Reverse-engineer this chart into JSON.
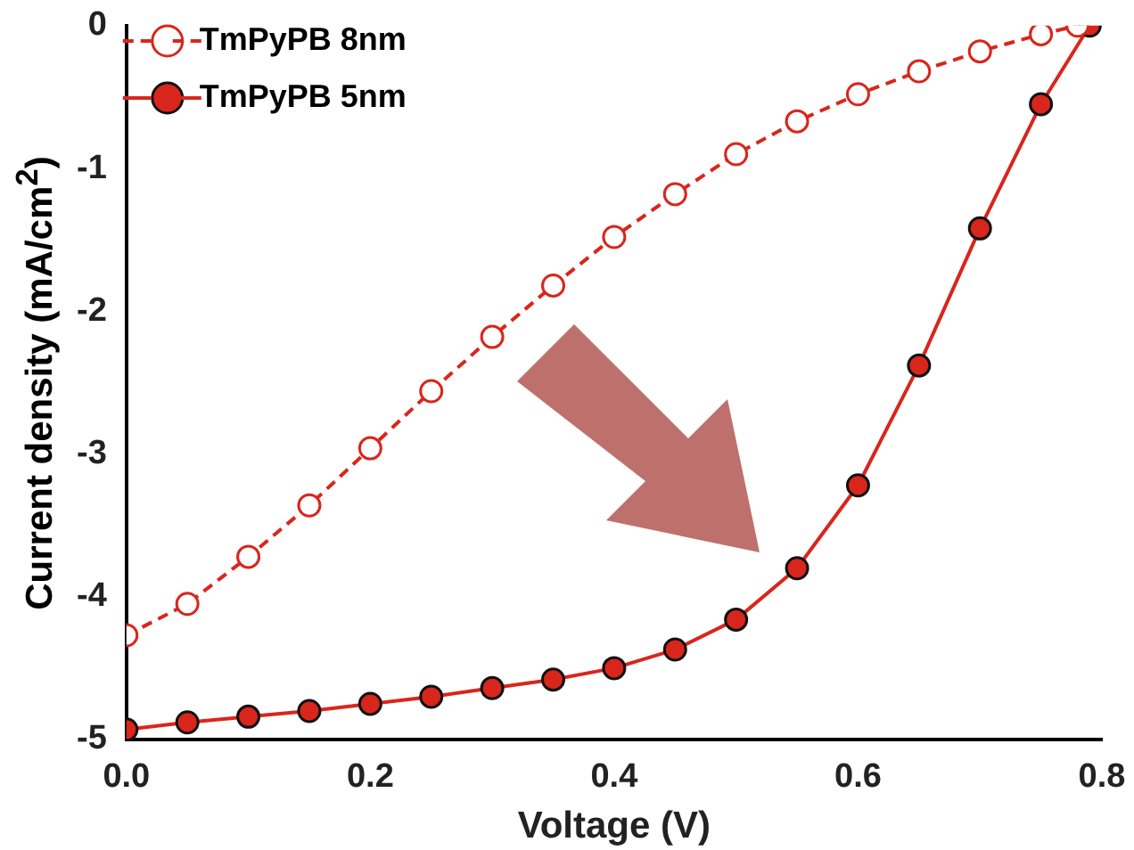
{
  "chart_data": {
    "type": "line",
    "xlabel": "Voltage (V)",
    "ylabel": "Current density (mA/cm$^{2}$)",
    "xlim": [
      0,
      0.8
    ],
    "xticks": [
      {
        "value": 0,
        "label": "0.0"
      },
      {
        "value": 0.2,
        "label": "0.2"
      },
      {
        "value": 0.4,
        "label": "0.4"
      },
      {
        "value": 0.6,
        "label": "0.6"
      },
      {
        "value": 0.8,
        "label": "0.8"
      }
    ],
    "ylim": [
      -5,
      0
    ],
    "yticks": [
      -5,
      -4,
      -3,
      -2,
      -1,
      0
    ],
    "grid": false,
    "legend": "top left",
    "series": [
      {
        "name": "TmPyPB 8nm",
        "color": "#d9261c",
        "line_style": "dashed",
        "marker": "circle",
        "x": [
          0,
          0.05,
          0.1,
          0.15,
          0.2,
          0.25,
          0.3,
          0.35,
          0.4,
          0.45,
          0.5,
          0.55,
          0.6,
          0.65,
          0.7,
          0.75,
          0.78
        ],
        "values": [
          -4.27,
          -4.05,
          -3.72,
          -3.36,
          -2.96,
          -2.56,
          -2.18,
          -1.82,
          -1.48,
          -1.18,
          -0.9,
          -0.67,
          -0.48,
          -0.32,
          -0.18,
          -0.06,
          0
        ]
      },
      {
        "name": "TmPyPB 5nm",
        "color": "#d9261c",
        "line_style": "solid",
        "marker": "circle",
        "x": [
          0,
          0.05,
          0.1,
          0.15,
          0.2,
          0.25,
          0.3,
          0.35,
          0.4,
          0.45,
          0.5,
          0.55,
          0.6,
          0.65,
          0.7,
          0.75,
          0.79
        ],
        "values": [
          -4.93,
          -4.88,
          -4.84,
          -4.8,
          -4.75,
          -4.7,
          -4.64,
          -4.58,
          -4.5,
          -4.37,
          -4.16,
          -3.8,
          -3.22,
          -2.38,
          -1.42,
          -0.55,
          0
        ]
      }
    ]
  }
}
